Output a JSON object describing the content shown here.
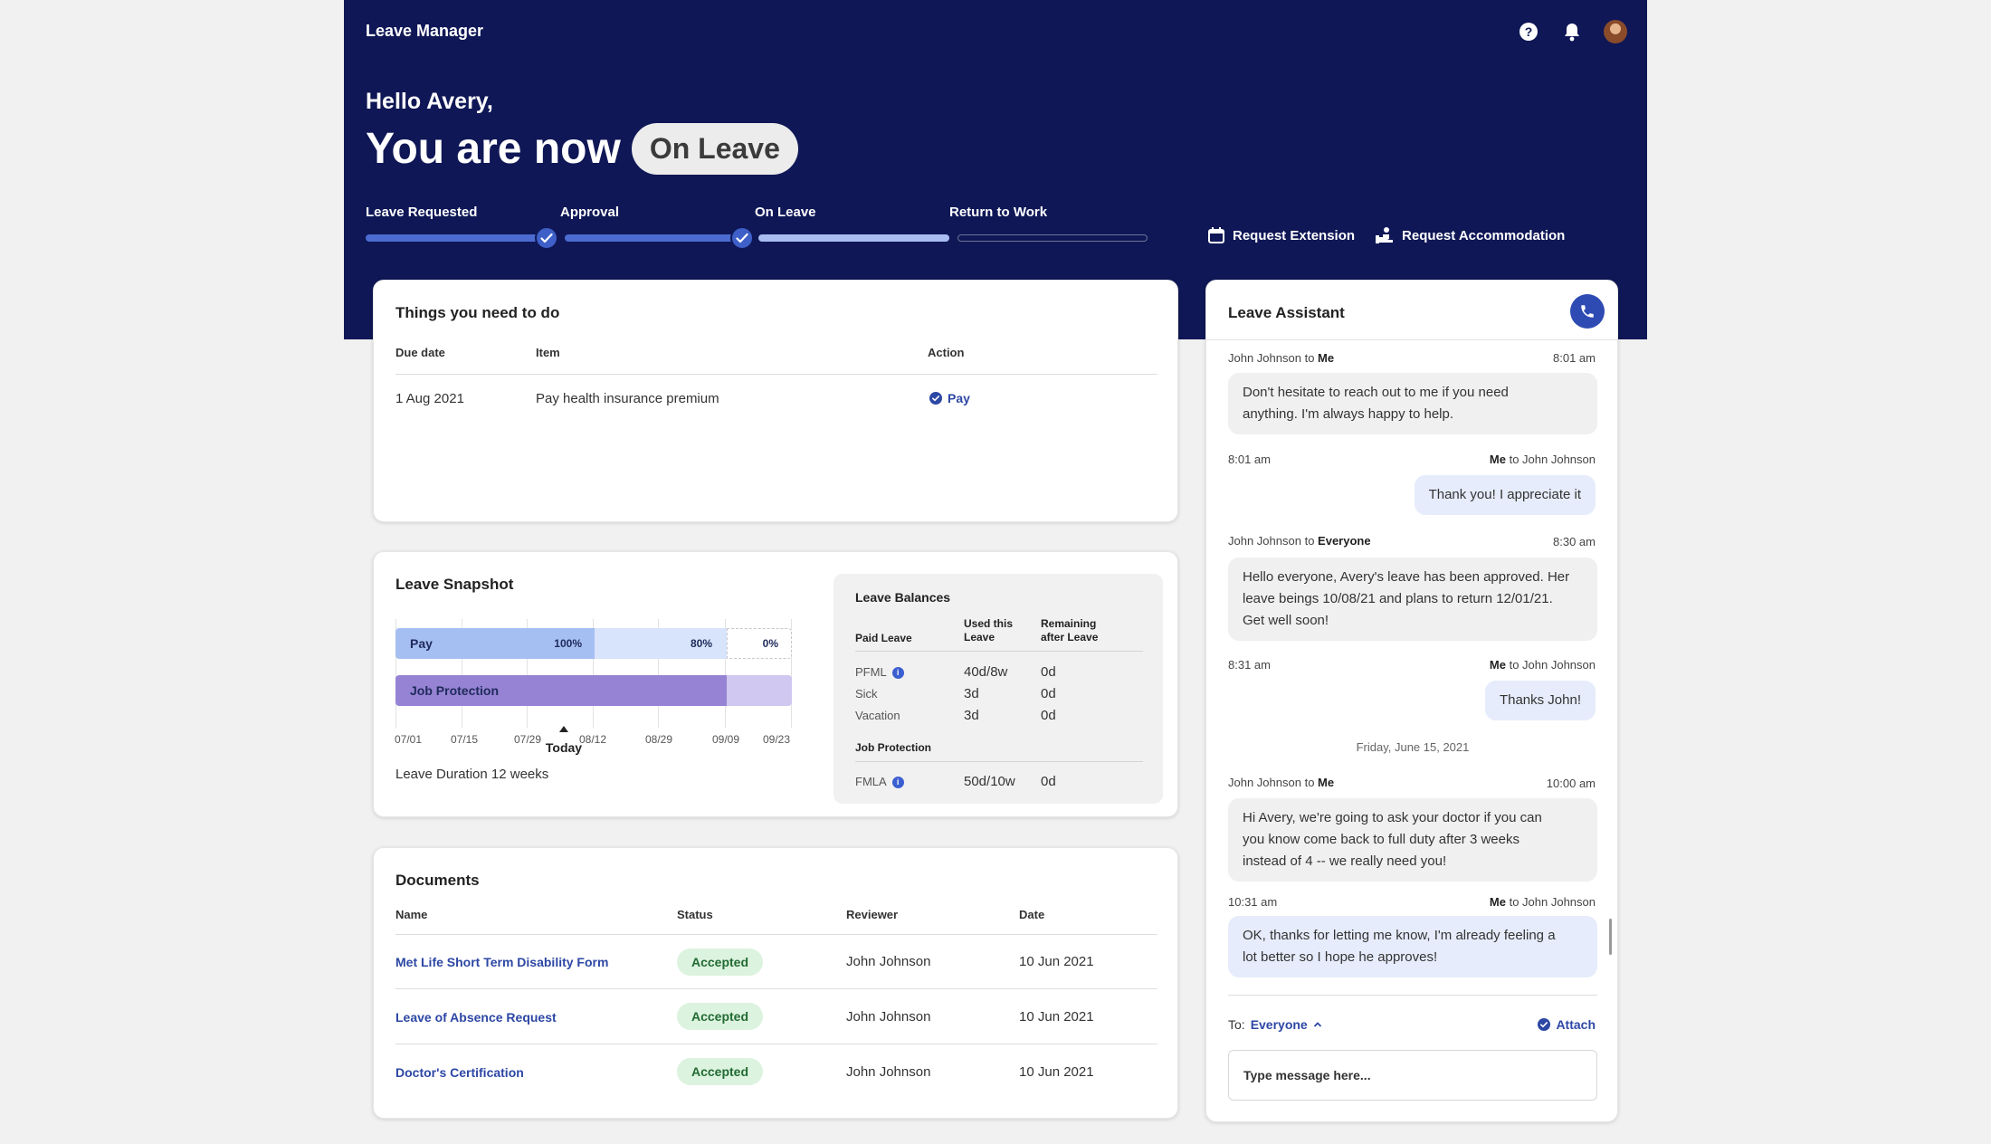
{
  "app": {
    "name": "Leave Manager"
  },
  "greeting": {
    "hello": "Hello Avery,",
    "status_prefix": "You are now",
    "status": "On Leave"
  },
  "progress": {
    "steps": [
      {
        "label": "Leave Requested",
        "state": "done"
      },
      {
        "label": "Approval",
        "state": "done"
      },
      {
        "label": "On Leave",
        "state": "current"
      },
      {
        "label": "Return to Work",
        "state": "upcoming"
      }
    ]
  },
  "actions": {
    "extension": "Request Extension",
    "accommodation": "Request Accommodation"
  },
  "todo": {
    "title": "Things you need to do",
    "columns": [
      "Due date",
      "Item",
      "Action"
    ],
    "rows": [
      {
        "due": "1 Aug 2021",
        "item": "Pay health insurance premium",
        "action": "Pay"
      }
    ]
  },
  "snapshot": {
    "title": "Leave Snapshot",
    "bars": {
      "pay_label": "Pay",
      "pay_pct_1": "100%",
      "pay_pct_2": "80%",
      "pay_pct_3": "0%",
      "job_label": "Job Protection"
    },
    "ticks": [
      "07/01",
      "07/15",
      "07/29",
      "08/12",
      "08/29",
      "09/09",
      "09/23"
    ],
    "today": "Today",
    "duration": "Leave Duration 12 weeks"
  },
  "balances": {
    "title": "Leave Balances",
    "paid_header": "Paid Leave",
    "used_header_1": "Used this",
    "used_header_2": "Leave",
    "rem_header_1": "Remaining",
    "rem_header_2": "after Leave",
    "paid_rows": [
      {
        "type": "PFML",
        "used": "40d/8w",
        "remaining": "0d"
      },
      {
        "type": "Sick",
        "used": "3d",
        "remaining": "0d"
      },
      {
        "type": "Vacation",
        "used": "3d",
        "remaining": "0d"
      }
    ],
    "job_header": "Job Protection",
    "job_rows": [
      {
        "type": "FMLA",
        "used": "50d/10w",
        "remaining": "0d"
      }
    ]
  },
  "documents": {
    "title": "Documents",
    "columns": [
      "Name",
      "Status",
      "Reviewer",
      "Date"
    ],
    "rows": [
      {
        "name": "Met Life Short Term Disability Form",
        "status": "Accepted",
        "reviewer": "John Johnson",
        "date": "10 Jun 2021"
      },
      {
        "name": "Leave of Absence Request",
        "status": "Accepted",
        "reviewer": "John Johnson",
        "date": "10 Jun 2021"
      },
      {
        "name": "Doctor's Certification",
        "status": "Accepted",
        "reviewer": "John Johnson",
        "date": "10 Jun 2021"
      }
    ]
  },
  "assistant": {
    "title": "Leave Assistant",
    "messages": [
      {
        "from": "John Johnson",
        "to": "Me",
        "time": "8:01 am",
        "text_1": "Don't hesitate to reach out to me if you need",
        "text_2": "anything. I'm always happy to help."
      },
      {
        "from": "Me",
        "to": "John Johnson",
        "time": "8:01 am",
        "text_1": "Thank you! I appreciate it"
      },
      {
        "from": "John Johnson",
        "to": "Everyone",
        "time": "8:30 am",
        "text_1": "Hello everyone, Avery's leave has been approved. Her",
        "text_2": "leave beings 10/08/21 and plans to return 12/01/21.",
        "text_3": "Get well soon!"
      },
      {
        "from": "Me",
        "to": "John Johnson",
        "time": "8:31 am",
        "text_1": "Thanks John!"
      },
      {
        "from": "John Johnson",
        "to": "Me",
        "time": "10:00 am",
        "text_1": "Hi Avery, we're going to ask your doctor if you can",
        "text_2": "you know come back to full duty after 3 weeks",
        "text_3": "instead of 4 -- we really need you!"
      },
      {
        "from": "Me",
        "to": "John Johnson",
        "time": "10:31 am",
        "text_1": "OK, thanks for letting me know, I'm already feeling a",
        "text_2": "lot better so I hope he approves!"
      }
    ],
    "to_word": "to",
    "date_separator": "Friday, June 15, 2021",
    "compose_to_label": "To:",
    "compose_recipient": "Everyone",
    "attach": "Attach",
    "placeholder": "Type message here..."
  }
}
